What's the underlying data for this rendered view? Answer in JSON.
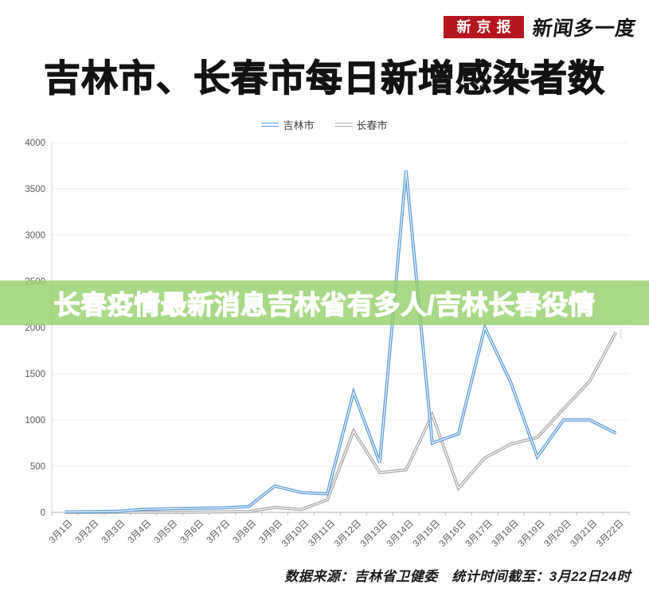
{
  "header": {
    "logo_box_text": "新京报",
    "logo_suffix_text": "新闻多一度",
    "logo_box_color": "#b5161f"
  },
  "title": "吉林市、长春市每日新增感染者数",
  "overlay_banner": {
    "text": "长春疫情最新消息吉林省有多人/吉林长春役情",
    "bg_color": "#96d16b",
    "text_color": "#ffffff"
  },
  "stray_mark": "[",
  "footer": {
    "source_text": "数据来源：吉林省卫健委　统计时间截至：3月22日24时"
  },
  "chart_data": {
    "type": "line",
    "title": "吉林市、长春市每日新增感染者数",
    "categories": [
      "3月1日",
      "3月2日",
      "3月3日",
      "3月4日",
      "3月5日",
      "3月6日",
      "3月7日",
      "3月8日",
      "3月9日",
      "3月10日",
      "3月11日",
      "3月12日",
      "3月13日",
      "3月14日",
      "3月15日",
      "3月16日",
      "3月17日",
      "3月18日",
      "3月19日",
      "3月20日",
      "3月21日",
      "3月22日"
    ],
    "series": [
      {
        "name": "吉林市",
        "color": "#5b9bd5",
        "values": [
          4,
          8,
          12,
          32,
          40,
          45,
          48,
          62,
          285,
          215,
          200,
          1300,
          540,
          3700,
          750,
          850,
          2000,
          1400,
          600,
          1000,
          1000,
          855
        ]
      },
      {
        "name": "长春市",
        "color": "#ababab",
        "values": [
          0,
          0,
          1,
          2,
          2,
          3,
          5,
          9,
          54,
          30,
          135,
          880,
          430,
          460,
          1055,
          260,
          590,
          740,
          810,
          1120,
          1420,
          1950
        ]
      }
    ],
    "ylim": [
      0,
      4000
    ],
    "ytick_step": 500,
    "grid": true,
    "legend_position": "top",
    "axis_label_color": "#595959",
    "gridline_color": "#ececec",
    "axis_line_color": "#bfbfbf"
  }
}
